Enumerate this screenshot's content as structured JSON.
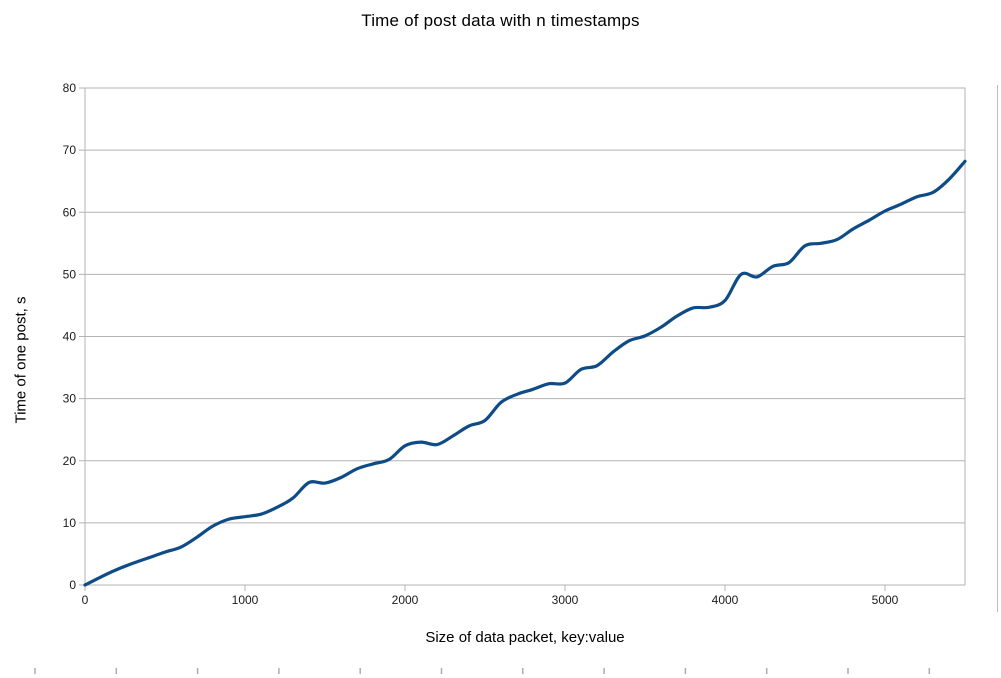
{
  "page": {
    "title": "Time of post data with n timestamps"
  },
  "chart_data": {
    "type": "line",
    "title": "Time of post data with n timestamps",
    "xlabel": "Size of data packet, key:value",
    "ylabel": "Time of one post, s",
    "xlim": [
      0,
      5500
    ],
    "ylim": [
      0,
      80
    ],
    "x_ticks": [
      0,
      1000,
      2000,
      3000,
      4000,
      5000
    ],
    "y_ticks": [
      0,
      10,
      20,
      30,
      40,
      50,
      60,
      70,
      80
    ],
    "grid": true,
    "legend_position": "none",
    "line_color": "#0f4c87",
    "grid_color": "#b3b3b3",
    "axis_color": "#b3b3b3",
    "tick_label_color": "#1a1a1a",
    "series": [
      {
        "name": "Time of one post",
        "x": [
          0,
          100,
          200,
          300,
          400,
          500,
          600,
          700,
          800,
          900,
          1000,
          1100,
          1200,
          1300,
          1400,
          1500,
          1600,
          1700,
          1800,
          1900,
          2000,
          2100,
          2200,
          2300,
          2400,
          2500,
          2600,
          2700,
          2800,
          2900,
          3000,
          3100,
          3200,
          3300,
          3400,
          3500,
          3600,
          3700,
          3800,
          3900,
          4000,
          4100,
          4200,
          4300,
          4400,
          4500,
          4600,
          4700,
          4800,
          4900,
          5000,
          5100,
          5200,
          5300,
          5400,
          5500
        ],
        "y": [
          0,
          1.3,
          2.5,
          3.5,
          4.4,
          5.3,
          6.1,
          7.7,
          9.5,
          10.6,
          11.0,
          11.4,
          12.5,
          14.0,
          16.5,
          16.4,
          17.3,
          18.7,
          19.5,
          20.2,
          22.4,
          23.0,
          22.6,
          24.0,
          25.6,
          26.5,
          29.4,
          30.7,
          31.5,
          32.4,
          32.5,
          34.7,
          35.3,
          37.5,
          39.3,
          40.1,
          41.5,
          43.3,
          44.6,
          44.7,
          45.8,
          50.0,
          49.6,
          51.3,
          51.9,
          54.6,
          55.0,
          55.6,
          57.3,
          58.7,
          60.2,
          61.3,
          62.5,
          63.2,
          65.3,
          68.2
        ]
      }
    ]
  }
}
